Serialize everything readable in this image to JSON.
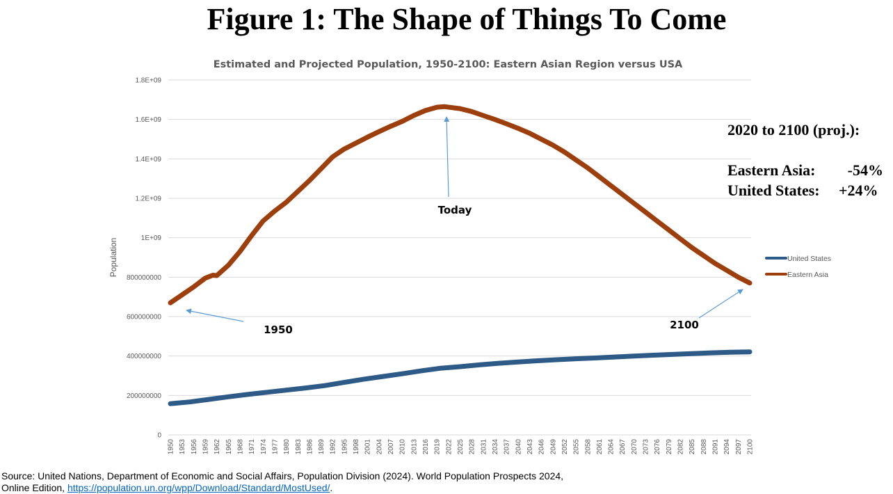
{
  "figure_title": "Figure 1: The Shape of Things To Come",
  "stats": {
    "heading": "2020 to 2100 (proj.):",
    "rows": [
      {
        "label": "Eastern Asia:",
        "value": "-54%"
      },
      {
        "label": "United States:",
        "value": "+24%"
      }
    ]
  },
  "source": {
    "line1": "Source: United Nations, Department of Economic and Social Affairs, Population Division (2024). World Population Prospects 2024,",
    "line2_prefix": "Online Edition, ",
    "link_text": "https://population.un.org/wpp/Download/Standard/MostUsed/",
    "line2_suffix": "."
  },
  "colors": {
    "united_states": "#2e5a87",
    "eastern_asia": "#9c3f0c",
    "arrow": "#5b9bd5",
    "grid": "#d9d9d9"
  },
  "chart_data": {
    "type": "line",
    "title": "Estimated and Projected Population, 1950-2100: Eastern Asian Region versus USA",
    "xlabel": "",
    "ylabel": "Population",
    "ylim": [
      0,
      1800000000
    ],
    "y_ticks": [
      {
        "value": 0,
        "label": "0"
      },
      {
        "value": 200000000,
        "label": "200000000"
      },
      {
        "value": 400000000,
        "label": "400000000"
      },
      {
        "value": 600000000,
        "label": "600000000"
      },
      {
        "value": 800000000,
        "label": "800000000"
      },
      {
        "value": 1000000000,
        "label": "1E+09"
      },
      {
        "value": 1200000000,
        "label": "1.2E+09"
      },
      {
        "value": 1400000000,
        "label": "1.4E+09"
      },
      {
        "value": 1600000000,
        "label": "1.6E+09"
      },
      {
        "value": 1800000000,
        "label": "1.8E+09"
      }
    ],
    "x_tick_labels": [
      "1950",
      "1953",
      "1956",
      "1959",
      "1962",
      "1965",
      "1968",
      "1971",
      "1974",
      "1977",
      "1980",
      "1983",
      "1986",
      "1989",
      "1992",
      "1995",
      "1998",
      "2001",
      "2004",
      "2007",
      "2010",
      "2013",
      "2016",
      "2019",
      "2022",
      "2025",
      "2028",
      "2031",
      "2034",
      "2037",
      "2040",
      "2043",
      "2046",
      "2049",
      "2052",
      "2055",
      "2058",
      "2061",
      "2064",
      "2067",
      "2070",
      "2073",
      "2076",
      "2079",
      "2082",
      "2085",
      "2088",
      "2091",
      "2094",
      "2097",
      "2100"
    ],
    "grid": true,
    "legend_position": "right",
    "series": [
      {
        "name": "United States",
        "points": [
          [
            1950,
            158000000
          ],
          [
            1955,
            167000000
          ],
          [
            1960,
            180000000
          ],
          [
            1965,
            193000000
          ],
          [
            1970,
            205000000
          ],
          [
            1975,
            216000000
          ],
          [
            1980,
            227000000
          ],
          [
            1985,
            238000000
          ],
          [
            1990,
            250000000
          ],
          [
            1995,
            266000000
          ],
          [
            2000,
            282000000
          ],
          [
            2005,
            296000000
          ],
          [
            2010,
            310000000
          ],
          [
            2015,
            325000000
          ],
          [
            2020,
            338000000
          ],
          [
            2025,
            346000000
          ],
          [
            2030,
            355000000
          ],
          [
            2035,
            363000000
          ],
          [
            2040,
            370000000
          ],
          [
            2045,
            376000000
          ],
          [
            2050,
            381000000
          ],
          [
            2055,
            386000000
          ],
          [
            2060,
            390000000
          ],
          [
            2065,
            395000000
          ],
          [
            2070,
            400000000
          ],
          [
            2075,
            404000000
          ],
          [
            2080,
            408000000
          ],
          [
            2085,
            412000000
          ],
          [
            2090,
            416000000
          ],
          [
            2095,
            419000000
          ],
          [
            2100,
            421000000
          ]
        ]
      },
      {
        "name": "Eastern Asia",
        "points": [
          [
            1950,
            670000000
          ],
          [
            1953,
            710000000
          ],
          [
            1956,
            750000000
          ],
          [
            1959,
            795000000
          ],
          [
            1961,
            810000000
          ],
          [
            1962,
            808000000
          ],
          [
            1965,
            860000000
          ],
          [
            1968,
            930000000
          ],
          [
            1971,
            1010000000
          ],
          [
            1974,
            1085000000
          ],
          [
            1977,
            1135000000
          ],
          [
            1980,
            1180000000
          ],
          [
            1983,
            1235000000
          ],
          [
            1986,
            1290000000
          ],
          [
            1989,
            1350000000
          ],
          [
            1992,
            1410000000
          ],
          [
            1995,
            1450000000
          ],
          [
            1998,
            1480000000
          ],
          [
            2001,
            1510000000
          ],
          [
            2004,
            1538000000
          ],
          [
            2007,
            1565000000
          ],
          [
            2010,
            1590000000
          ],
          [
            2013,
            1620000000
          ],
          [
            2016,
            1645000000
          ],
          [
            2019,
            1662000000
          ],
          [
            2021,
            1665000000
          ],
          [
            2025,
            1655000000
          ],
          [
            2028,
            1640000000
          ],
          [
            2031,
            1620000000
          ],
          [
            2034,
            1600000000
          ],
          [
            2037,
            1578000000
          ],
          [
            2040,
            1555000000
          ],
          [
            2043,
            1530000000
          ],
          [
            2046,
            1500000000
          ],
          [
            2049,
            1470000000
          ],
          [
            2052,
            1435000000
          ],
          [
            2055,
            1395000000
          ],
          [
            2058,
            1355000000
          ],
          [
            2061,
            1310000000
          ],
          [
            2064,
            1265000000
          ],
          [
            2067,
            1220000000
          ],
          [
            2070,
            1175000000
          ],
          [
            2073,
            1130000000
          ],
          [
            2076,
            1085000000
          ],
          [
            2079,
            1040000000
          ],
          [
            2082,
            995000000
          ],
          [
            2085,
            950000000
          ],
          [
            2088,
            910000000
          ],
          [
            2091,
            870000000
          ],
          [
            2094,
            835000000
          ],
          [
            2097,
            800000000
          ],
          [
            2100,
            770000000
          ]
        ]
      }
    ],
    "annotations": [
      {
        "text": "Today",
        "point": [
          2021,
          1665000000
        ]
      },
      {
        "text": "1950",
        "point": [
          1950,
          670000000
        ]
      },
      {
        "text": "2100",
        "point": [
          2100,
          770000000
        ]
      }
    ]
  }
}
